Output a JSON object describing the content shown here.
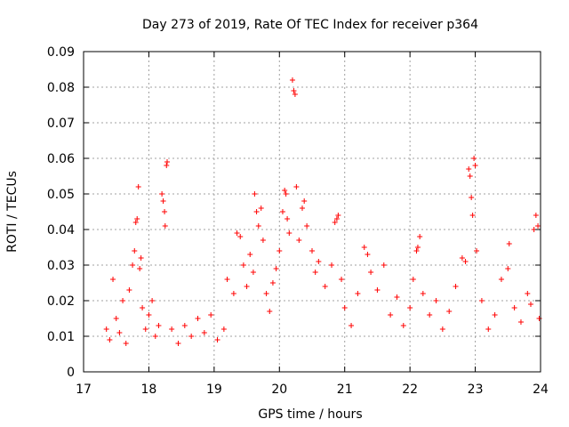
{
  "chart_data": {
    "type": "scatter",
    "title": "Day 273 of 2019, Rate Of TEC Index for receiver p364",
    "xlabel": "GPS time / hours",
    "ylabel": "ROTI / TECUs",
    "xlim": [
      17,
      24
    ],
    "ylim": [
      0,
      0.09
    ],
    "x_ticks": [
      17,
      18,
      19,
      20,
      21,
      22,
      23,
      24
    ],
    "x_tick_labels": [
      "17",
      "18",
      "19",
      "20",
      "21",
      "22",
      "23",
      "24"
    ],
    "y_ticks": [
      0,
      0.01,
      0.02,
      0.03,
      0.04,
      0.05,
      0.06,
      0.07,
      0.08,
      0.09
    ],
    "y_tick_labels": [
      "0",
      "0.01",
      "0.02",
      "0.03",
      "0.04",
      "0.05",
      "0.06",
      "0.07",
      "0.08",
      "0.09"
    ],
    "grid": true,
    "marker": "+",
    "series": [
      {
        "name": "ROTI",
        "color": "#ff0000",
        "points": [
          [
            17.35,
            0.012
          ],
          [
            17.4,
            0.009
          ],
          [
            17.45,
            0.026
          ],
          [
            17.5,
            0.015
          ],
          [
            17.55,
            0.011
          ],
          [
            17.6,
            0.02
          ],
          [
            17.65,
            0.008
          ],
          [
            17.7,
            0.023
          ],
          [
            17.75,
            0.03
          ],
          [
            17.78,
            0.034
          ],
          [
            17.8,
            0.042
          ],
          [
            17.82,
            0.043
          ],
          [
            17.84,
            0.052
          ],
          [
            17.86,
            0.029
          ],
          [
            17.88,
            0.032
          ],
          [
            17.9,
            0.018
          ],
          [
            17.95,
            0.012
          ],
          [
            18.0,
            0.016
          ],
          [
            18.05,
            0.02
          ],
          [
            18.1,
            0.01
          ],
          [
            18.15,
            0.013
          ],
          [
            18.2,
            0.05
          ],
          [
            18.22,
            0.048
          ],
          [
            18.24,
            0.045
          ],
          [
            18.25,
            0.041
          ],
          [
            18.27,
            0.058
          ],
          [
            18.28,
            0.059
          ],
          [
            18.35,
            0.012
          ],
          [
            18.45,
            0.008
          ],
          [
            18.55,
            0.013
          ],
          [
            18.65,
            0.01
          ],
          [
            18.75,
            0.015
          ],
          [
            18.85,
            0.011
          ],
          [
            18.95,
            0.016
          ],
          [
            19.05,
            0.009
          ],
          [
            19.15,
            0.012
          ],
          [
            19.2,
            0.026
          ],
          [
            19.3,
            0.022
          ],
          [
            19.35,
            0.039
          ],
          [
            19.4,
            0.038
          ],
          [
            19.45,
            0.03
          ],
          [
            19.5,
            0.024
          ],
          [
            19.55,
            0.033
          ],
          [
            19.6,
            0.028
          ],
          [
            19.62,
            0.05
          ],
          [
            19.65,
            0.045
          ],
          [
            19.68,
            0.041
          ],
          [
            19.72,
            0.046
          ],
          [
            19.75,
            0.037
          ],
          [
            19.8,
            0.022
          ],
          [
            19.85,
            0.017
          ],
          [
            19.9,
            0.025
          ],
          [
            19.95,
            0.029
          ],
          [
            20.0,
            0.034
          ],
          [
            20.05,
            0.045
          ],
          [
            20.08,
            0.051
          ],
          [
            20.1,
            0.05
          ],
          [
            20.12,
            0.043
          ],
          [
            20.15,
            0.039
          ],
          [
            20.2,
            0.082
          ],
          [
            20.22,
            0.079
          ],
          [
            20.24,
            0.078
          ],
          [
            20.26,
            0.052
          ],
          [
            20.3,
            0.037
          ],
          [
            20.35,
            0.046
          ],
          [
            20.38,
            0.048
          ],
          [
            20.42,
            0.041
          ],
          [
            20.5,
            0.034
          ],
          [
            20.55,
            0.028
          ],
          [
            20.6,
            0.031
          ],
          [
            20.7,
            0.024
          ],
          [
            20.8,
            0.03
          ],
          [
            20.85,
            0.042
          ],
          [
            20.88,
            0.043
          ],
          [
            20.9,
            0.044
          ],
          [
            20.95,
            0.026
          ],
          [
            21.0,
            0.018
          ],
          [
            21.1,
            0.013
          ],
          [
            21.2,
            0.022
          ],
          [
            21.3,
            0.035
          ],
          [
            21.35,
            0.033
          ],
          [
            21.4,
            0.028
          ],
          [
            21.5,
            0.023
          ],
          [
            21.6,
            0.03
          ],
          [
            21.7,
            0.016
          ],
          [
            21.8,
            0.021
          ],
          [
            21.9,
            0.013
          ],
          [
            22.0,
            0.018
          ],
          [
            22.05,
            0.026
          ],
          [
            22.1,
            0.034
          ],
          [
            22.12,
            0.035
          ],
          [
            22.15,
            0.038
          ],
          [
            22.2,
            0.022
          ],
          [
            22.3,
            0.016
          ],
          [
            22.4,
            0.02
          ],
          [
            22.5,
            0.012
          ],
          [
            22.6,
            0.017
          ],
          [
            22.7,
            0.024
          ],
          [
            22.8,
            0.032
          ],
          [
            22.85,
            0.031
          ],
          [
            22.9,
            0.057
          ],
          [
            22.92,
            0.055
          ],
          [
            22.94,
            0.049
          ],
          [
            22.96,
            0.044
          ],
          [
            22.98,
            0.06
          ],
          [
            23.0,
            0.058
          ],
          [
            23.02,
            0.034
          ],
          [
            23.1,
            0.02
          ],
          [
            23.2,
            0.012
          ],
          [
            23.3,
            0.016
          ],
          [
            23.4,
            0.026
          ],
          [
            23.5,
            0.029
          ],
          [
            23.52,
            0.036
          ],
          [
            23.6,
            0.018
          ],
          [
            23.7,
            0.014
          ],
          [
            23.8,
            0.022
          ],
          [
            23.85,
            0.019
          ],
          [
            23.9,
            0.04
          ],
          [
            23.93,
            0.044
          ],
          [
            23.96,
            0.041
          ],
          [
            23.98,
            0.015
          ]
        ]
      }
    ]
  }
}
